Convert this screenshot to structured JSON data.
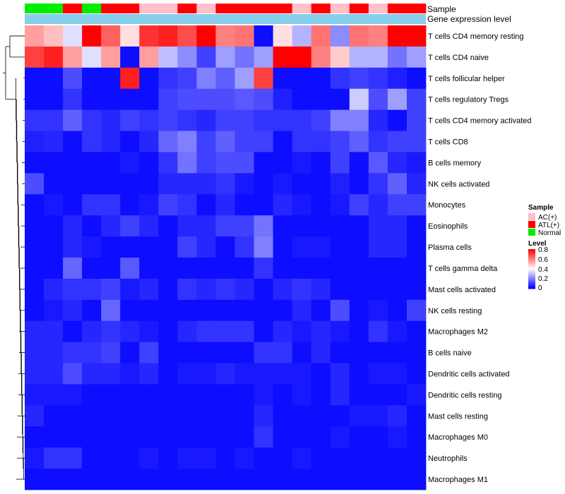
{
  "chart_data": {
    "type": "heatmap",
    "annotation_labels": {
      "sample": "Sample",
      "gene_level": "Gene expression level"
    },
    "samples": [
      "Normal",
      "Normal",
      "ATL(+)",
      "Normal",
      "ATL(+)",
      "ATL(+)",
      "AC(+)",
      "AC(+)",
      "ATL(+)",
      "AC(+)",
      "ATL(+)",
      "ATL(+)",
      "ATL(+)",
      "ATL(+)",
      "AC(+)",
      "ATL(+)",
      "AC(+)",
      "ATL(+)",
      "AC(+)",
      "ATL(+)",
      "ATL(+)"
    ],
    "rows": [
      "T cells CD4 memory resting",
      "T cells CD4 naive",
      "T cells follicular helper",
      "T cells regulatory  Tregs",
      "T cells CD4 memory activated",
      "T cells CD8",
      "B cells memory",
      "NK cells activated",
      "Monocytes",
      "Eosinophils",
      "Plasma cells",
      "T cells gamma delta",
      "Mast cells activated",
      "NK cells resting",
      "Macrophages M2",
      "B cells naive",
      "Dendritic cells activated",
      "Dendritic cells resting",
      "Mast cells resting",
      "Macrophages M0",
      "Neutrophils",
      "Macrophages M1"
    ],
    "values": [
      [
        0.55,
        0.5,
        0.35,
        0.8,
        0.65,
        0.45,
        0.72,
        0.75,
        0.68,
        0.8,
        0.6,
        0.62,
        0.02,
        0.45,
        0.28,
        0.62,
        0.22,
        0.62,
        0.6,
        0.8,
        0.8
      ],
      [
        0.7,
        0.75,
        0.55,
        0.35,
        0.55,
        0.02,
        0.55,
        0.3,
        0.22,
        0.1,
        0.25,
        0.18,
        0.25,
        0.8,
        0.8,
        0.6,
        0.48,
        0.28,
        0.28,
        0.18,
        0.25
      ],
      [
        0.02,
        0.02,
        0.12,
        0.02,
        0.02,
        0.75,
        0.02,
        0.08,
        0.1,
        0.2,
        0.15,
        0.25,
        0.7,
        0.02,
        0.02,
        0.02,
        0.08,
        0.1,
        0.08,
        0.05,
        0.02
      ],
      [
        0.02,
        0.02,
        0.08,
        0.02,
        0.02,
        0.02,
        0.02,
        0.1,
        0.12,
        0.12,
        0.12,
        0.14,
        0.12,
        0.05,
        0.02,
        0.02,
        0.02,
        0.32,
        0.12,
        0.25,
        0.1
      ],
      [
        0.08,
        0.08,
        0.15,
        0.08,
        0.06,
        0.1,
        0.08,
        0.1,
        0.08,
        0.06,
        0.1,
        0.1,
        0.08,
        0.08,
        0.08,
        0.1,
        0.2,
        0.2,
        0.06,
        0.02,
        0.1
      ],
      [
        0.05,
        0.06,
        0.02,
        0.08,
        0.06,
        0.02,
        0.06,
        0.16,
        0.2,
        0.1,
        0.15,
        0.1,
        0.1,
        0.02,
        0.08,
        0.08,
        0.1,
        0.15,
        0.08,
        0.1,
        0.1
      ],
      [
        0.02,
        0.02,
        0.02,
        0.02,
        0.02,
        0.04,
        0.02,
        0.08,
        0.18,
        0.1,
        0.12,
        0.12,
        0.02,
        0.02,
        0.04,
        0.02,
        0.1,
        0.02,
        0.14,
        0.06,
        0.04
      ],
      [
        0.12,
        0.02,
        0.02,
        0.02,
        0.02,
        0.02,
        0.02,
        0.06,
        0.06,
        0.06,
        0.08,
        0.04,
        0.02,
        0.04,
        0.02,
        0.02,
        0.05,
        0.02,
        0.08,
        0.15,
        0.06
      ],
      [
        0.02,
        0.04,
        0.02,
        0.08,
        0.08,
        0.02,
        0.04,
        0.1,
        0.08,
        0.02,
        0.06,
        0.02,
        0.02,
        0.06,
        0.04,
        0.02,
        0.04,
        0.1,
        0.06,
        0.1,
        0.1
      ],
      [
        0.02,
        0.02,
        0.06,
        0.02,
        0.06,
        0.1,
        0.06,
        0.02,
        0.06,
        0.06,
        0.1,
        0.1,
        0.18,
        0.02,
        0.02,
        0.02,
        0.02,
        0.02,
        0.06,
        0.06,
        0.02
      ],
      [
        0.02,
        0.02,
        0.06,
        0.04,
        0.02,
        0.02,
        0.02,
        0.02,
        0.1,
        0.06,
        0.02,
        0.08,
        0.2,
        0.02,
        0.04,
        0.04,
        0.02,
        0.02,
        0.06,
        0.06,
        0.02
      ],
      [
        0.02,
        0.02,
        0.16,
        0.02,
        0.02,
        0.14,
        0.02,
        0.02,
        0.02,
        0.02,
        0.02,
        0.02,
        0.08,
        0.02,
        0.02,
        0.02,
        0.02,
        0.02,
        0.02,
        0.02,
        0.02
      ],
      [
        0.02,
        0.06,
        0.08,
        0.08,
        0.1,
        0.04,
        0.06,
        0.02,
        0.08,
        0.06,
        0.08,
        0.06,
        0.02,
        0.06,
        0.08,
        0.06,
        0.02,
        0.02,
        0.02,
        0.02,
        0.02
      ],
      [
        0.02,
        0.04,
        0.06,
        0.02,
        0.16,
        0.02,
        0.02,
        0.02,
        0.02,
        0.02,
        0.02,
        0.02,
        0.02,
        0.02,
        0.06,
        0.02,
        0.12,
        0.02,
        0.04,
        0.02,
        0.1
      ],
      [
        0.06,
        0.06,
        0.02,
        0.06,
        0.08,
        0.06,
        0.04,
        0.02,
        0.06,
        0.08,
        0.08,
        0.08,
        0.02,
        0.06,
        0.04,
        0.06,
        0.04,
        0.02,
        0.08,
        0.04,
        0.02
      ],
      [
        0.06,
        0.06,
        0.08,
        0.08,
        0.1,
        0.02,
        0.1,
        0.02,
        0.02,
        0.02,
        0.02,
        0.02,
        0.08,
        0.08,
        0.02,
        0.06,
        0.02,
        0.02,
        0.02,
        0.02,
        0.02
      ],
      [
        0.06,
        0.06,
        0.12,
        0.06,
        0.06,
        0.04,
        0.06,
        0.02,
        0.04,
        0.04,
        0.06,
        0.04,
        0.04,
        0.04,
        0.04,
        0.02,
        0.06,
        0.02,
        0.04,
        0.04,
        0.02
      ],
      [
        0.04,
        0.04,
        0.04,
        0.02,
        0.02,
        0.02,
        0.02,
        0.02,
        0.02,
        0.02,
        0.02,
        0.02,
        0.04,
        0.02,
        0.04,
        0.02,
        0.06,
        0.02,
        0.02,
        0.02,
        0.04
      ],
      [
        0.06,
        0.02,
        0.02,
        0.02,
        0.02,
        0.02,
        0.02,
        0.02,
        0.02,
        0.02,
        0.02,
        0.02,
        0.06,
        0.02,
        0.02,
        0.02,
        0.02,
        0.04,
        0.04,
        0.06,
        0.02
      ],
      [
        0.02,
        0.02,
        0.02,
        0.02,
        0.02,
        0.02,
        0.02,
        0.02,
        0.02,
        0.02,
        0.02,
        0.02,
        0.08,
        0.02,
        0.02,
        0.02,
        0.04,
        0.02,
        0.02,
        0.04,
        0.02
      ],
      [
        0.04,
        0.08,
        0.08,
        0.02,
        0.02,
        0.02,
        0.04,
        0.02,
        0.04,
        0.04,
        0.02,
        0.04,
        0.02,
        0.02,
        0.04,
        0.02,
        0.02,
        0.02,
        0.02,
        0.02,
        0.02
      ],
      [
        0.02,
        0.02,
        0.02,
        0.02,
        0.02,
        0.02,
        0.02,
        0.02,
        0.02,
        0.02,
        0.02,
        0.02,
        0.02,
        0.02,
        0.02,
        0.02,
        0.02,
        0.02,
        0.02,
        0.02,
        0.02
      ]
    ],
    "sample_colors": {
      "AC(+)": "#ffc0cb",
      "ATL(+)": "#ff0000",
      "Normal": "#00ee00"
    },
    "gene_level_color": "#87ceeb",
    "color_scale": {
      "low": "#0000ff",
      "mid": "#ffffff",
      "high": "#ff0000",
      "mid_value": 0.4,
      "max": 0.8
    },
    "legend": {
      "sample_title": "Sample",
      "sample_entries": [
        "AC(+)",
        "ATL(+)",
        "Normal"
      ],
      "level_title": "Level",
      "level_ticks": [
        "0.8",
        "0.6",
        "0.4",
        "0.2",
        "0"
      ]
    },
    "row_dendrogram": true
  }
}
